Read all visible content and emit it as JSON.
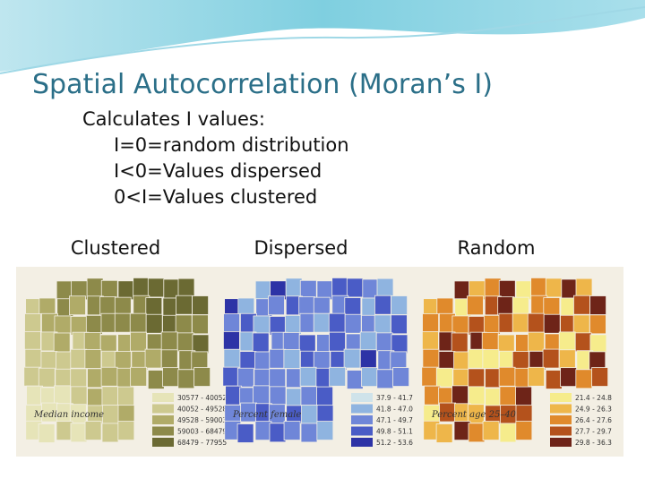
{
  "title": "Spatial Autocorrelation (Moran’s I)",
  "intro": "Calculates I values:",
  "items": [
    "I=0=random distribution",
    "I<0=Values dispersed",
    "0<I=Values clustered"
  ],
  "panels": [
    {
      "label": "Clustered",
      "caption": "Median income",
      "legend": [
        "30577 - 40052",
        "40052 - 49528",
        "49528 - 59003",
        "59003 - 68479",
        "68479 - 77955"
      ],
      "colors": [
        "#e6e4b8",
        "#cdc98f",
        "#b0ab68",
        "#8d8a4a",
        "#6b6a33"
      ]
    },
    {
      "label": "Dispersed",
      "caption": "Percent female",
      "legend": [
        "37.9 - 41.7",
        "41.8 - 47.0",
        "47.1 - 49.7",
        "49.8 - 51.1",
        "51.2 - 53.6"
      ],
      "colors": [
        "#cfe3ea",
        "#8fb4e0",
        "#6f86d8",
        "#4a5cc6",
        "#2d33a6"
      ]
    },
    {
      "label": "Random",
      "caption": "Percent age 25–40",
      "legend": [
        "21.4 - 24.8",
        "24.9 - 26.3",
        "26.4 - 27.6",
        "27.7 - 29.7",
        "29.8 - 36.3"
      ],
      "colors": [
        "#f6ec8c",
        "#eeb64a",
        "#e08a2c",
        "#b4521c",
        "#6e2418"
      ]
    }
  ]
}
